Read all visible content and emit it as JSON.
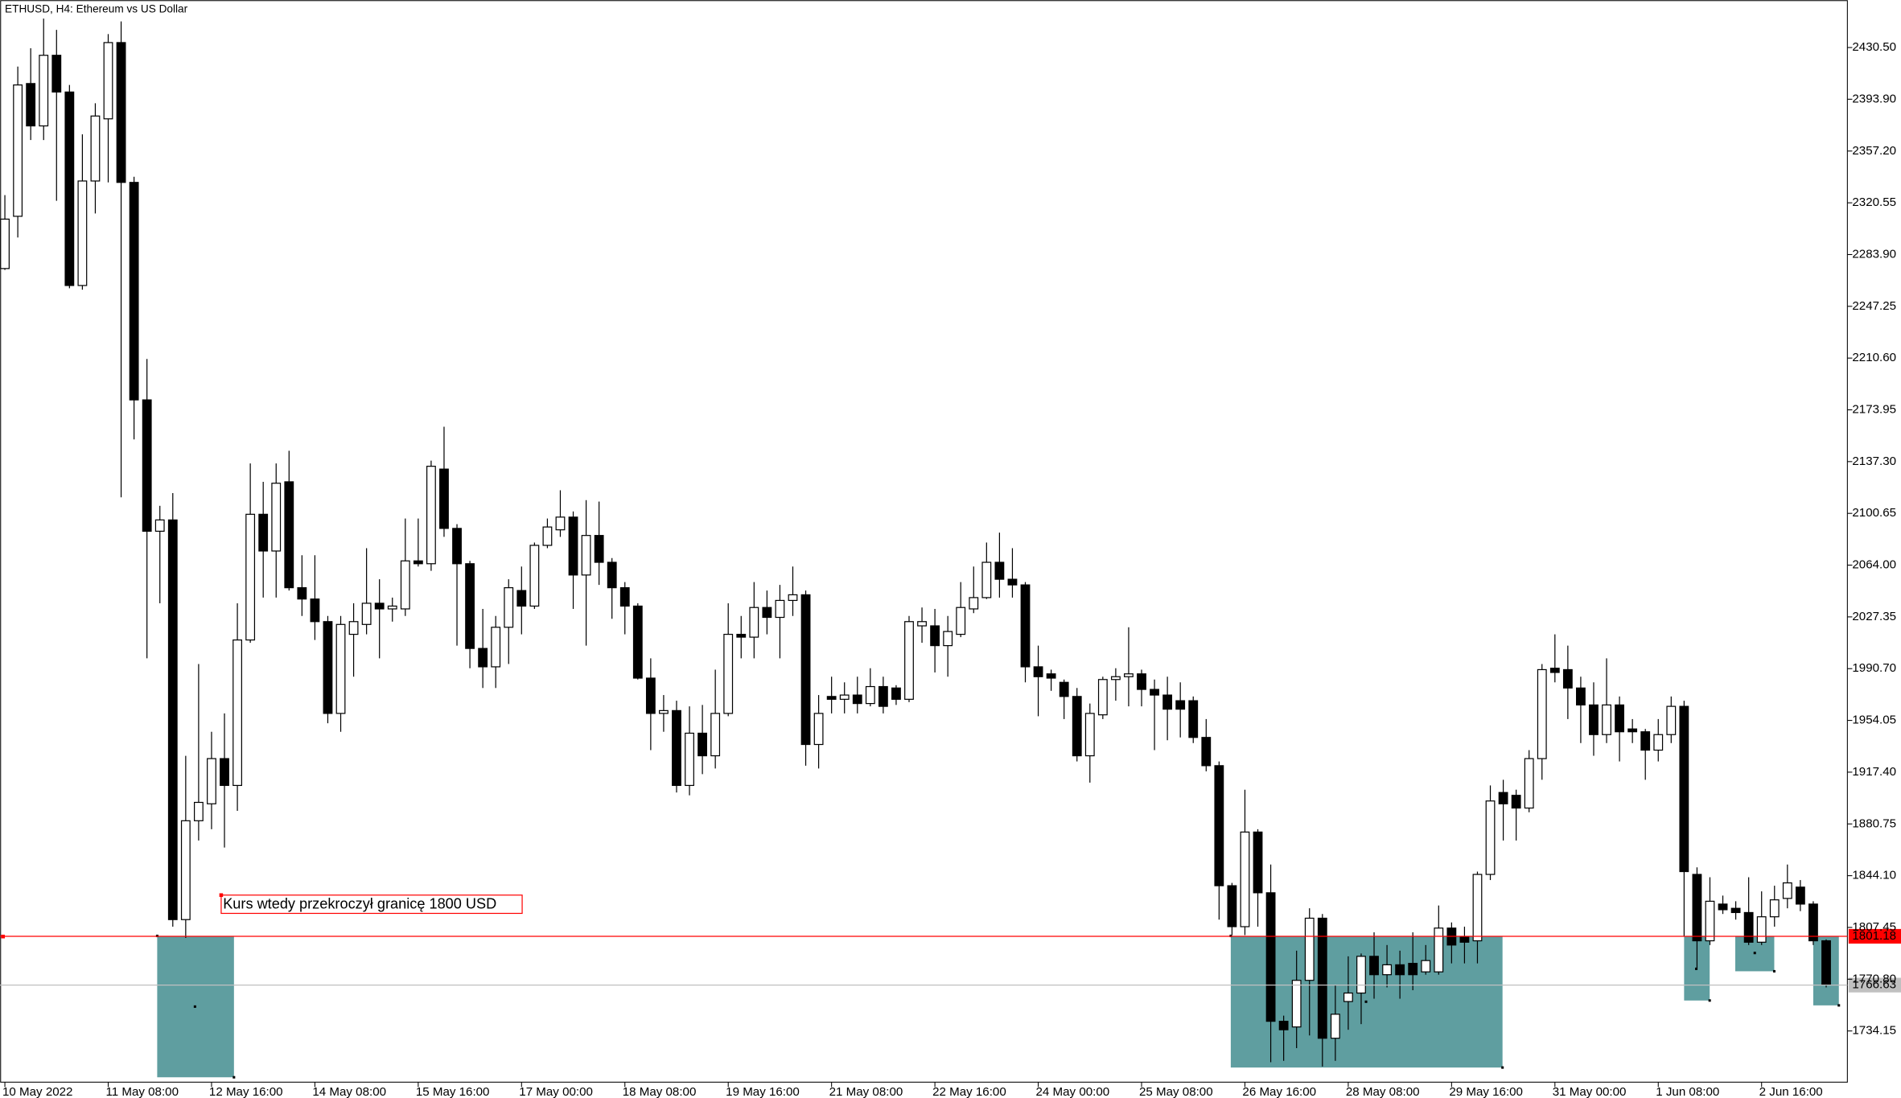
{
  "chart_data": {
    "type": "candlestick",
    "title": "ETHUSD, H4:  Ethereum vs US Dollar",
    "categories": [
      "10 May 2022",
      null,
      null,
      null,
      null,
      null,
      null,
      null,
      "11 May 08:00",
      null,
      null,
      null,
      null,
      null,
      null,
      null,
      "12 May 16:00",
      null,
      null,
      null,
      null,
      null,
      null,
      null,
      "14 May 08:00",
      null,
      null,
      null,
      null,
      null,
      null,
      null,
      "15 May 16:00",
      null,
      null,
      null,
      null,
      null,
      null,
      null,
      "17 May 00:00",
      null,
      null,
      null,
      null,
      null,
      null,
      null,
      "18 May 08:00",
      null,
      null,
      null,
      null,
      null,
      null,
      null,
      "19 May 16:00",
      null,
      null,
      null,
      null,
      null,
      null,
      null,
      "21 May 08:00",
      null,
      null,
      null,
      null,
      null,
      null,
      null,
      "22 May 16:00",
      null,
      null,
      null,
      null,
      null,
      null,
      null,
      "24 May 00:00",
      null,
      null,
      null,
      null,
      null,
      null,
      null,
      "25 May 08:00",
      null,
      null,
      null,
      null,
      null,
      null,
      null,
      "26 May 16:00",
      null,
      null,
      null,
      null,
      null,
      null,
      null,
      "28 May 08:00",
      null,
      null,
      null,
      null,
      null,
      null,
      null,
      "29 May 16:00",
      null,
      null,
      null,
      null,
      null,
      null,
      null,
      "31 May 00:00",
      null,
      null,
      null,
      null,
      null,
      null,
      null,
      "1 Jun 08:00",
      null,
      null,
      null,
      null,
      null,
      null,
      null,
      "2 Jun 16:00",
      null,
      null,
      null,
      null,
      null
    ],
    "open": [
      2274,
      2311,
      2405,
      2375,
      2425,
      2399,
      2262,
      2336,
      2380,
      2434,
      2335,
      2181,
      2088,
      2096,
      1813,
      1883,
      1895,
      1927,
      1908,
      2011,
      2100,
      2074,
      2123,
      2048,
      2040,
      2024,
      1959,
      2015,
      2022,
      2037,
      2033,
      2033,
      2067,
      2065,
      2132,
      2090,
      2065,
      2005,
      1992,
      2020,
      2046,
      2035,
      2078,
      2089,
      2098,
      2057,
      2085,
      2066,
      2048,
      2035,
      1984,
      1959,
      1961,
      1908,
      1945,
      1929,
      1959,
      2015,
      2013,
      2034,
      2027,
      2039,
      2043,
      1937,
      1971,
      1969,
      1972,
      1966,
      1978,
      1977,
      1969,
      2021,
      2021,
      2007,
      2015,
      2033,
      2041,
      2066,
      2054,
      2050,
      1992,
      1987,
      1981,
      1971,
      1929,
      1958,
      1983,
      1985,
      1987,
      1976,
      1972,
      1968,
      1968,
      1942,
      1922,
      1837,
      1808,
      1875,
      1832,
      1741,
      1737,
      1770,
      1814,
      1729,
      1755,
      1761,
      1787,
      1774,
      1781,
      1782,
      1776,
      1776,
      1807,
      1801,
      1798,
      1845,
      1903,
      1901,
      1892,
      1927,
      1991,
      1990,
      1977,
      1965,
      1944,
      1965,
      1948,
      1946,
      1933,
      1944,
      1964,
      1845,
      1798,
      1824,
      1821,
      1818,
      1797,
      1815,
      1828,
      1836,
      1824,
      1798
    ],
    "high": [
      2326,
      2417,
      2430,
      2451,
      2443,
      2404,
      2369,
      2391,
      2440,
      2449,
      2339,
      2210,
      2106,
      2115,
      1929,
      1994,
      1946,
      1959,
      2037,
      2136,
      2123,
      2136,
      2145,
      2071,
      2071,
      2028,
      2028,
      2037,
      2076,
      2054,
      2041,
      2097,
      2097,
      2138,
      2162,
      2093,
      2067,
      2033,
      2028,
      2054,
      2063,
      2080,
      2097,
      2117,
      2102,
      2110,
      2109,
      2069,
      2052,
      2037,
      1998,
      1972,
      1968,
      1964,
      1965,
      1990,
      2037,
      2028,
      2052,
      2046,
      2050,
      2063,
      2046,
      1972,
      1985,
      1981,
      1985,
      1991,
      1985,
      1979,
      2028,
      2034,
      2033,
      2028,
      2052,
      2063,
      2080,
      2087,
      2076,
      2052,
      2007,
      1990,
      1983,
      1977,
      1966,
      1985,
      1991,
      2020,
      1990,
      1983,
      1985,
      1981,
      1971,
      1955,
      1925,
      1839,
      1905,
      1877,
      1852,
      1745,
      1791,
      1821,
      1817,
      1767,
      1787,
      1789,
      1804,
      1795,
      1791,
      1804,
      1795,
      1823,
      1811,
      1808,
      1847,
      1908,
      1912,
      1905,
      1933,
      1994,
      2015,
      2007,
      1985,
      1981,
      1998,
      1971,
      1955,
      1948,
      1955,
      1971,
      1968,
      1850,
      1843,
      1830,
      1826,
      1843,
      1833,
      1837,
      1852,
      1841,
      1826,
      1799
    ],
    "low": [
      2273,
      2296,
      2365,
      2365,
      2322,
      2260,
      2259,
      2313,
      2335,
      2112,
      2153,
      1998,
      2037,
      1808,
      1800,
      1869,
      1877,
      1864,
      1890,
      2009,
      2041,
      2041,
      2046,
      2028,
      2011,
      1952,
      1946,
      1985,
      2015,
      1998,
      2024,
      2028,
      2063,
      2060,
      2084,
      2007,
      1991,
      1977,
      1977,
      1994,
      2015,
      2033,
      2076,
      2084,
      2033,
      2007,
      2050,
      2026,
      2015,
      1983,
      1933,
      1946,
      1903,
      1901,
      1916,
      1920,
      1957,
      1998,
      1998,
      2015,
      1998,
      2028,
      1922,
      1920,
      1959,
      1959,
      1959,
      1964,
      1959,
      1965,
      1967,
      2009,
      1988,
      1985,
      2013,
      2030,
      2040,
      2041,
      2041,
      1981,
      1957,
      1975,
      1955,
      1925,
      1910,
      1955,
      1968,
      1964,
      1964,
      1933,
      1940,
      1942,
      1938,
      1918,
      1813,
      1802,
      1802,
      1808,
      1712,
      1713,
      1722,
      1731,
      1709,
      1713,
      1735,
      1739,
      1757,
      1765,
      1757,
      1763,
      1774,
      1774,
      1782,
      1782,
      1782,
      1841,
      1869,
      1869,
      1889,
      1912,
      1981,
      1955,
      1938,
      1929,
      1938,
      1925,
      1938,
      1912,
      1925,
      1938,
      1801,
      1778,
      1795,
      1817,
      1813,
      1795,
      1795,
      1808,
      1821,
      1819,
      1795,
      1765
    ],
    "close": [
      2309,
      2404,
      2375,
      2425,
      2399,
      2262,
      2336,
      2382,
      2434,
      2335,
      2181,
      2088,
      2096,
      1813,
      1883,
      1896,
      1927,
      1908,
      2011,
      2100,
      2074,
      2122,
      2048,
      2040,
      2024,
      1959,
      2022,
      2024,
      2037,
      2033,
      2035,
      2067,
      2065,
      2134,
      2090,
      2065,
      2005,
      1992,
      2020,
      2048,
      2035,
      2078,
      2091,
      2098,
      2057,
      2085,
      2066,
      2048,
      2035,
      1984,
      1959,
      1961,
      1908,
      1945,
      1929,
      1959,
      2015,
      2013,
      2034,
      2027,
      2039,
      2043,
      1937,
      1959,
      1969,
      1972,
      1966,
      1978,
      1964,
      1969,
      2024,
      2024,
      2007,
      2017,
      2034,
      2041,
      2066,
      2054,
      2050,
      1992,
      1985,
      1984,
      1971,
      1929,
      1959,
      1983,
      1985,
      1987,
      1976,
      1972,
      1962,
      1962,
      1942,
      1922,
      1837,
      1808,
      1875,
      1832,
      1741,
      1735,
      1770,
      1814,
      1729,
      1746,
      1761,
      1787,
      1774,
      1781,
      1774,
      1774,
      1784,
      1807,
      1795,
      1797,
      1845,
      1897,
      1895,
      1892,
      1927,
      1990,
      1988,
      1977,
      1965,
      1944,
      1965,
      1946,
      1946,
      1933,
      1944,
      1964,
      1847,
      1798,
      1826,
      1820,
      1818,
      1797,
      1815,
      1827,
      1839,
      1824,
      1798,
      1767
    ],
    "up_color": "#ffffff",
    "down_color": "#000000",
    "ylim": [
      1697.9,
      2464.15
    ],
    "yticks": [
      {
        "value": 2430.5,
        "label": "2430.50"
      },
      {
        "value": 2393.9,
        "label": "2393.90"
      },
      {
        "value": 2357.2,
        "label": "2357.20"
      },
      2320.55,
      {
        "value": 2283.9,
        "label": "2283.90"
      },
      2247.25,
      {
        "value": 2210.6,
        "label": "2210.60"
      },
      2173.95,
      {
        "value": 2137.3,
        "label": "2137.30"
      },
      2100.65,
      {
        "value": 2064,
        "label": "2064.00"
      },
      2027.35,
      {
        "value": 1990.7,
        "label": "1990.70"
      },
      1954.05,
      {
        "value": 1917.4,
        "label": "1917.40"
      },
      1880.75,
      {
        "value": 1844.1,
        "label": "1844.10"
      },
      1807.45,
      {
        "value": 1770.8,
        "label": "1770.80"
      },
      1734.15
    ],
    "hlines": [
      {
        "value": 1801.18,
        "color": "#ff0000"
      },
      {
        "value": 1766.63,
        "color": "#c0c0c0"
      }
    ],
    "annotation": {
      "text": "Kurs wtedy przekroczył granicę 1800 USD",
      "color": "#ff0000"
    },
    "grid": false
  }
}
